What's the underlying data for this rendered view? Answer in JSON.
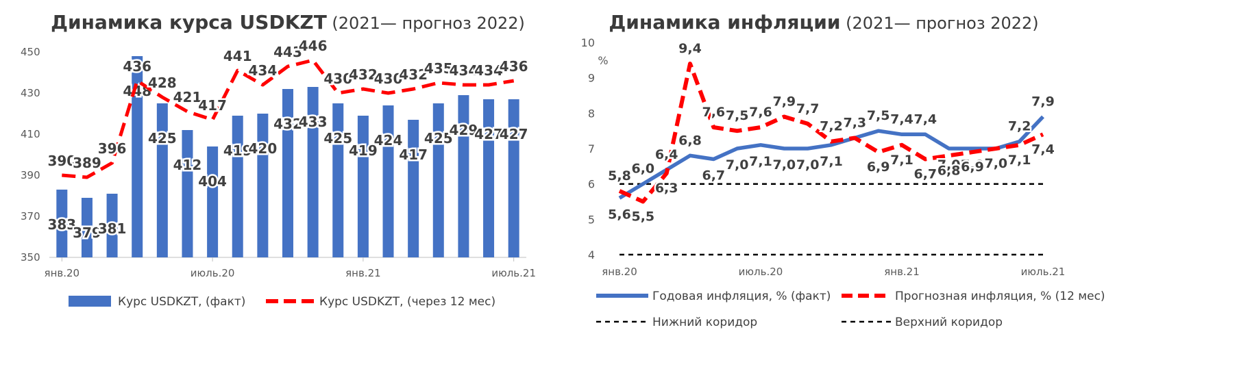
{
  "chart_data": [
    {
      "type": "bar+line",
      "title": "Динамика курса USDKZT",
      "subtitle": "(2021— прогноз 2022)",
      "yticks": [
        "450",
        "430",
        "410",
        "390",
        "370",
        "350"
      ],
      "xticks": [
        "янв.20",
        "июль.20",
        "янв.21",
        "июль.21"
      ],
      "ylim": [
        350,
        450
      ],
      "series": [
        {
          "name": "Курс USDKZT, (факт)",
          "kind": "bar",
          "color": "#4472C4",
          "values": [
            383,
            379,
            381,
            448,
            425,
            412,
            404,
            419,
            420,
            432,
            433,
            425,
            419,
            424,
            417,
            425,
            429,
            427,
            427
          ],
          "labels": [
            "383",
            "379",
            "381",
            "448",
            "425",
            "412",
            "404",
            "419",
            "420",
            "432",
            "433",
            "425",
            "419",
            "424",
            "417",
            "425",
            "429",
            "427",
            "427"
          ]
        },
        {
          "name": "Курс USDKZT, (через 12 мес)",
          "kind": "line-dashed",
          "color": "#FF0000",
          "values": [
            390,
            389,
            396,
            436,
            428,
            421,
            417,
            441,
            434,
            443,
            446,
            430,
            432,
            430,
            432,
            435,
            434,
            434,
            436
          ],
          "labels": [
            "390",
            "389",
            "396",
            "436",
            "428",
            "421",
            "417",
            "441",
            "434",
            "443",
            "446",
            "430",
            "432",
            "430",
            "432",
            "435",
            "434",
            "434",
            "436"
          ]
        }
      ],
      "grid": false,
      "legend_position": "bottom"
    },
    {
      "type": "line",
      "title": "Динамика инфляции",
      "subtitle": "(2021— прогноз 2022)",
      "yticks": [
        "10",
        "9",
        "8",
        "7",
        "6",
        "5",
        "4"
      ],
      "ylabel": "%",
      "xticks": [
        "янв.20",
        "июль.20",
        "янв.21",
        "июль.21"
      ],
      "ylim": [
        4,
        10
      ],
      "series": [
        {
          "name": "Годовая инфляция, % (факт)",
          "kind": "line-solid",
          "color": "#4472C4",
          "values": [
            5.6,
            6.0,
            6.4,
            6.8,
            6.7,
            7.0,
            7.1,
            7.0,
            7.0,
            7.1,
            7.3,
            7.5,
            7.4,
            7.4,
            7.0,
            7.0,
            7.0,
            7.2,
            7.9
          ],
          "labels": [
            "5,6",
            "6,0",
            "6,4",
            "6,8",
            "6,7",
            "7,0",
            "7,1",
            "7,0",
            "7,0",
            "7,1",
            "7,3",
            "7,5",
            "7,4",
            "7,4",
            "7,0",
            "7,0",
            "7,0",
            "7,2",
            "7,9"
          ]
        },
        {
          "name": "Прогнозная инфляция, % (12 мес)",
          "kind": "line-dashed",
          "color": "#FF0000",
          "values": [
            5.8,
            5.5,
            6.3,
            9.4,
            7.6,
            7.5,
            7.6,
            7.9,
            7.7,
            7.2,
            7.3,
            6.9,
            7.1,
            6.7,
            6.8,
            6.9,
            7.0,
            7.1,
            7.4
          ],
          "labels": [
            "5,8",
            "5,5",
            "6,3",
            "9,4",
            "7,6",
            "7,5",
            "7,6",
            "7,9",
            "7,7",
            "7,2",
            "",
            "6,9",
            "7,1",
            "6,7",
            "6,8",
            "6,9",
            "7,0",
            "7,1",
            "7,4"
          ]
        },
        {
          "name": "Нижний коридор",
          "kind": "line-dashed-thin",
          "color": "#000000",
          "values": [
            4,
            4,
            4,
            4,
            4,
            4,
            4,
            4,
            4,
            4,
            4,
            4,
            4,
            4,
            4,
            4,
            4,
            4,
            4
          ]
        },
        {
          "name": "Верхний коридор",
          "kind": "line-dashed-thin",
          "color": "#000000",
          "values": [
            6,
            6,
            6,
            6,
            6,
            6,
            6,
            6,
            6,
            6,
            6,
            6,
            6,
            6,
            6,
            6,
            6,
            6,
            6
          ]
        }
      ],
      "grid": false,
      "legend_position": "bottom"
    }
  ]
}
